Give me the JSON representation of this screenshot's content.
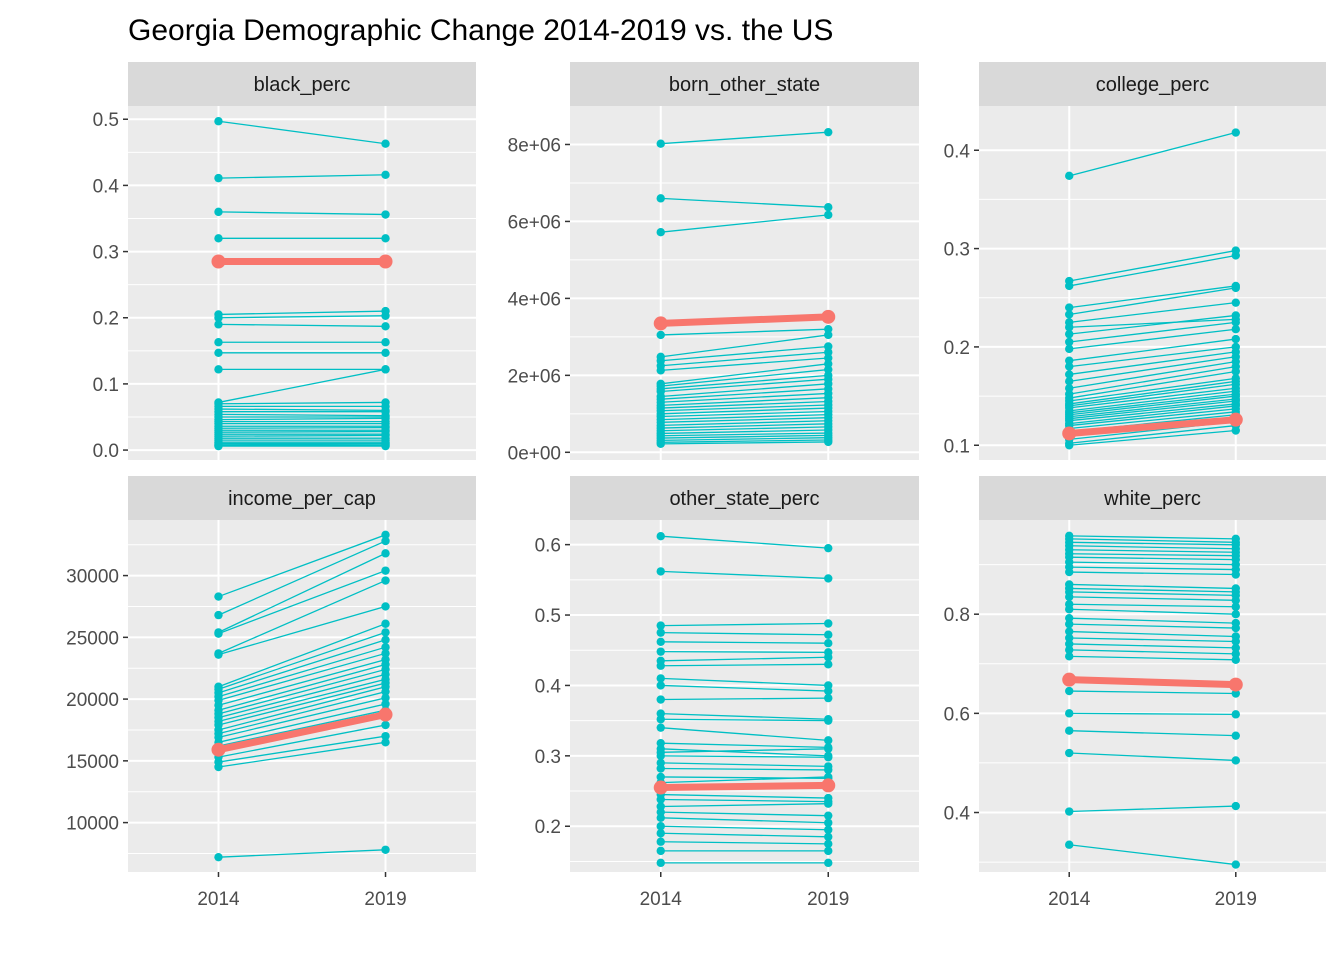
{
  "title": "Georgia Demographic Change 2014-2019 vs. the US",
  "colors": {
    "others": "#00BFC4",
    "highlight": "#F8766D",
    "panel_bg": "#EBEBEB",
    "strip_bg": "#D9D9D9",
    "grid": "#FFFFFF"
  },
  "chart_data": {
    "type": "line",
    "title": "Georgia Demographic Change 2014-2019 vs. the US",
    "x": [
      "2014",
      "2019"
    ],
    "grid": true,
    "legend": "none",
    "facets": [
      {
        "name": "black_perc",
        "ylim": [
          -0.015,
          0.52
        ],
        "yticks": [
          0.0,
          0.1,
          0.2,
          0.3,
          0.4,
          0.5
        ],
        "ytick_labels": [
          "0.0",
          "0.1",
          "0.2",
          "0.3",
          "0.4",
          "0.5"
        ],
        "highlight": [
          0.285,
          0.285
        ],
        "others": [
          [
            0.497,
            0.463
          ],
          [
            0.411,
            0.416
          ],
          [
            0.36,
            0.356
          ],
          [
            0.32,
            0.32
          ],
          [
            0.205,
            0.21
          ],
          [
            0.2,
            0.203
          ],
          [
            0.19,
            0.187
          ],
          [
            0.163,
            0.163
          ],
          [
            0.147,
            0.147
          ],
          [
            0.122,
            0.122
          ],
          [
            0.072,
            0.122
          ],
          [
            0.07,
            0.072
          ],
          [
            0.066,
            0.066
          ],
          [
            0.062,
            0.06
          ],
          [
            0.058,
            0.058
          ],
          [
            0.054,
            0.052
          ],
          [
            0.05,
            0.05
          ],
          [
            0.046,
            0.048
          ],
          [
            0.043,
            0.043
          ],
          [
            0.04,
            0.04
          ],
          [
            0.036,
            0.036
          ],
          [
            0.033,
            0.034
          ],
          [
            0.03,
            0.03
          ],
          [
            0.027,
            0.028
          ],
          [
            0.024,
            0.024
          ],
          [
            0.021,
            0.022
          ],
          [
            0.018,
            0.018
          ],
          [
            0.015,
            0.015
          ],
          [
            0.012,
            0.012
          ],
          [
            0.01,
            0.01
          ],
          [
            0.008,
            0.009
          ],
          [
            0.007,
            0.007
          ],
          [
            0.006,
            0.006
          ]
        ]
      },
      {
        "name": "born_other_state",
        "ylim": [
          -200000,
          9000000
        ],
        "yticks": [
          0,
          2000000,
          4000000,
          6000000,
          8000000
        ],
        "ytick_labels": [
          "0e+00",
          "2e+06",
          "4e+06",
          "6e+06",
          "8e+06"
        ],
        "highlight": [
          3350000,
          3520000
        ],
        "others": [
          [
            8020000,
            8320000
          ],
          [
            6600000,
            6370000
          ],
          [
            5720000,
            6170000
          ],
          [
            3050000,
            3200000
          ],
          [
            2480000,
            3050000
          ],
          [
            2380000,
            2750000
          ],
          [
            2250000,
            2600000
          ],
          [
            2130000,
            2450000
          ],
          [
            1780000,
            2300000
          ],
          [
            1720000,
            2150000
          ],
          [
            1650000,
            2000000
          ],
          [
            1580000,
            1900000
          ],
          [
            1450000,
            1780000
          ],
          [
            1380000,
            1650000
          ],
          [
            1300000,
            1530000
          ],
          [
            1220000,
            1420000
          ],
          [
            1150000,
            1320000
          ],
          [
            1080000,
            1230000
          ],
          [
            1000000,
            1150000
          ],
          [
            930000,
            1060000
          ],
          [
            850000,
            980000
          ],
          [
            780000,
            900000
          ],
          [
            700000,
            820000
          ],
          [
            630000,
            740000
          ],
          [
            560000,
            660000
          ],
          [
            490000,
            580000
          ],
          [
            430000,
            500000
          ],
          [
            370000,
            440000
          ],
          [
            310000,
            380000
          ],
          [
            260000,
            320000
          ],
          [
            220000,
            270000
          ]
        ]
      },
      {
        "name": "college_perc",
        "ylim": [
          0.085,
          0.445
        ],
        "yticks": [
          0.1,
          0.2,
          0.3,
          0.4
        ],
        "ytick_labels": [
          "0.1",
          "0.2",
          "0.3",
          "0.4"
        ],
        "highlight": [
          0.112,
          0.126
        ],
        "others": [
          [
            0.374,
            0.418
          ],
          [
            0.267,
            0.298
          ],
          [
            0.262,
            0.293
          ],
          [
            0.24,
            0.262
          ],
          [
            0.233,
            0.26
          ],
          [
            0.225,
            0.245
          ],
          [
            0.22,
            0.228
          ],
          [
            0.213,
            0.232
          ],
          [
            0.205,
            0.225
          ],
          [
            0.198,
            0.218
          ],
          [
            0.186,
            0.208
          ],
          [
            0.18,
            0.2
          ],
          [
            0.172,
            0.195
          ],
          [
            0.165,
            0.19
          ],
          [
            0.158,
            0.185
          ],
          [
            0.152,
            0.18
          ],
          [
            0.148,
            0.175
          ],
          [
            0.145,
            0.168
          ],
          [
            0.142,
            0.165
          ],
          [
            0.14,
            0.162
          ],
          [
            0.138,
            0.158
          ],
          [
            0.135,
            0.155
          ],
          [
            0.133,
            0.152
          ],
          [
            0.131,
            0.15
          ],
          [
            0.129,
            0.147
          ],
          [
            0.127,
            0.145
          ],
          [
            0.125,
            0.142
          ],
          [
            0.122,
            0.14
          ],
          [
            0.12,
            0.137
          ],
          [
            0.117,
            0.134
          ],
          [
            0.114,
            0.131
          ],
          [
            0.11,
            0.128
          ],
          [
            0.106,
            0.124
          ],
          [
            0.102,
            0.12
          ],
          [
            0.1,
            0.115
          ]
        ]
      },
      {
        "name": "income_per_cap",
        "ylim": [
          6000,
          34500
        ],
        "yticks": [
          10000,
          15000,
          20000,
          25000,
          30000
        ],
        "ytick_labels": [
          "10000",
          "15000",
          "20000",
          "25000",
          "30000"
        ],
        "highlight": [
          15900,
          18750
        ],
        "others": [
          [
            28300,
            33300
          ],
          [
            26800,
            32800
          ],
          [
            25400,
            31800
          ],
          [
            25300,
            30400
          ],
          [
            23700,
            29600
          ],
          [
            23600,
            27500
          ],
          [
            21000,
            26100
          ],
          [
            20800,
            25400
          ],
          [
            20500,
            24800
          ],
          [
            20200,
            24200
          ],
          [
            19900,
            23700
          ],
          [
            19500,
            23200
          ],
          [
            19100,
            22800
          ],
          [
            18800,
            22400
          ],
          [
            18500,
            22000
          ],
          [
            18200,
            21600
          ],
          [
            17900,
            21300
          ],
          [
            17500,
            21000
          ],
          [
            17200,
            20600
          ],
          [
            16900,
            20100
          ],
          [
            16500,
            19600
          ],
          [
            16200,
            19100
          ],
          [
            15800,
            18600
          ],
          [
            15300,
            17900
          ],
          [
            14900,
            17000
          ],
          [
            14500,
            16500
          ],
          [
            7200,
            7800
          ]
        ]
      },
      {
        "name": "other_state_perc",
        "ylim": [
          0.135,
          0.635
        ],
        "yticks": [
          0.2,
          0.3,
          0.4,
          0.5,
          0.6
        ],
        "ytick_labels": [
          "0.2",
          "0.3",
          "0.4",
          "0.5",
          "0.6"
        ],
        "highlight": [
          0.255,
          0.258
        ],
        "others": [
          [
            0.612,
            0.595
          ],
          [
            0.562,
            0.552
          ],
          [
            0.485,
            0.488
          ],
          [
            0.475,
            0.472
          ],
          [
            0.462,
            0.46
          ],
          [
            0.448,
            0.447
          ],
          [
            0.435,
            0.44
          ],
          [
            0.428,
            0.43
          ],
          [
            0.41,
            0.4
          ],
          [
            0.4,
            0.392
          ],
          [
            0.38,
            0.382
          ],
          [
            0.36,
            0.352
          ],
          [
            0.352,
            0.35
          ],
          [
            0.34,
            0.322
          ],
          [
            0.318,
            0.312
          ],
          [
            0.31,
            0.3
          ],
          [
            0.305,
            0.31
          ],
          [
            0.3,
            0.298
          ],
          [
            0.29,
            0.285
          ],
          [
            0.282,
            0.28
          ],
          [
            0.27,
            0.268
          ],
          [
            0.262,
            0.27
          ],
          [
            0.245,
            0.24
          ],
          [
            0.238,
            0.235
          ],
          [
            0.228,
            0.232
          ],
          [
            0.22,
            0.215
          ],
          [
            0.212,
            0.205
          ],
          [
            0.2,
            0.195
          ],
          [
            0.19,
            0.185
          ],
          [
            0.178,
            0.175
          ],
          [
            0.165,
            0.165
          ],
          [
            0.148,
            0.148
          ]
        ]
      },
      {
        "name": "white_perc",
        "ylim": [
          0.28,
          0.99
        ],
        "yticks": [
          0.4,
          0.6,
          0.8
        ],
        "ytick_labels": [
          "0.4",
          "0.6",
          "0.8"
        ],
        "highlight": [
          0.668,
          0.658
        ],
        "others": [
          [
            0.958,
            0.952
          ],
          [
            0.952,
            0.945
          ],
          [
            0.945,
            0.94
          ],
          [
            0.938,
            0.932
          ],
          [
            0.93,
            0.925
          ],
          [
            0.922,
            0.918
          ],
          [
            0.915,
            0.91
          ],
          [
            0.905,
            0.9
          ],
          [
            0.895,
            0.89
          ],
          [
            0.885,
            0.88
          ],
          [
            0.86,
            0.852
          ],
          [
            0.852,
            0.845
          ],
          [
            0.845,
            0.838
          ],
          [
            0.835,
            0.828
          ],
          [
            0.82,
            0.815
          ],
          [
            0.81,
            0.8
          ],
          [
            0.792,
            0.782
          ],
          [
            0.78,
            0.772
          ],
          [
            0.765,
            0.755
          ],
          [
            0.752,
            0.745
          ],
          [
            0.74,
            0.732
          ],
          [
            0.728,
            0.72
          ],
          [
            0.715,
            0.708
          ],
          [
            0.672,
            0.655
          ],
          [
            0.645,
            0.64
          ],
          [
            0.6,
            0.598
          ],
          [
            0.565,
            0.555
          ],
          [
            0.52,
            0.505
          ],
          [
            0.402,
            0.413
          ],
          [
            0.335,
            0.295
          ]
        ]
      }
    ]
  }
}
